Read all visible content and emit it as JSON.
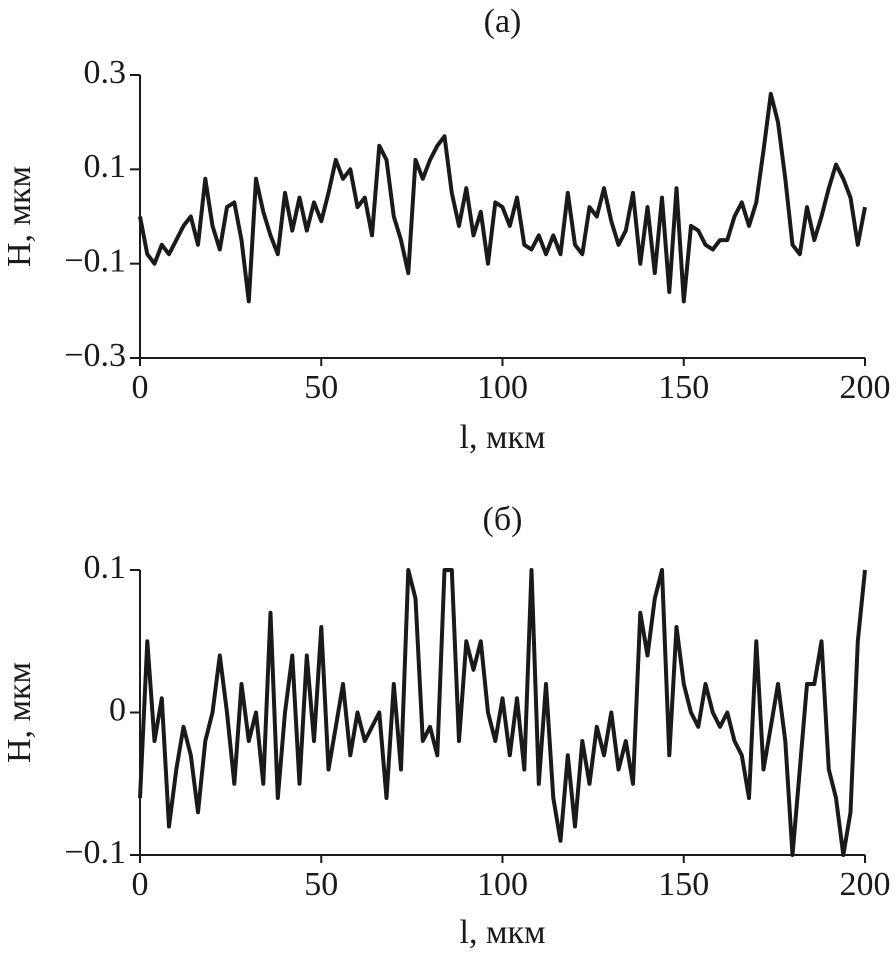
{
  "chart_data": [
    {
      "type": "line",
      "title": "(a)",
      "xlabel": "l, мкм",
      "ylabel": "H, мкм",
      "color": "#1a1a1a",
      "xlim": [
        0,
        200
      ],
      "xticks": [
        0,
        50,
        100,
        150,
        200
      ],
      "ylim": [
        -0.3,
        0.3
      ],
      "yticks": [
        {
          "value": -0.3,
          "label": "−0.3"
        },
        {
          "value": -0.1,
          "label": "−0.1"
        },
        0.1,
        0.3
      ],
      "x": [
        0,
        2,
        4,
        6,
        8,
        10,
        12,
        14,
        16,
        18,
        20,
        22,
        24,
        26,
        28,
        30,
        32,
        34,
        36,
        38,
        40,
        42,
        44,
        46,
        48,
        50,
        52,
        54,
        56,
        58,
        60,
        62,
        64,
        66,
        68,
        70,
        72,
        74,
        76,
        78,
        80,
        82,
        84,
        86,
        88,
        90,
        92,
        94,
        96,
        98,
        100,
        102,
        104,
        106,
        108,
        110,
        112,
        114,
        116,
        118,
        120,
        122,
        124,
        126,
        128,
        130,
        132,
        134,
        136,
        138,
        140,
        142,
        144,
        146,
        148,
        150,
        152,
        154,
        156,
        158,
        160,
        162,
        164,
        166,
        168,
        170,
        172,
        174,
        176,
        178,
        180,
        182,
        184,
        186,
        188,
        190,
        192,
        194,
        196,
        198,
        200
      ],
      "values": [
        0.0,
        -0.08,
        -0.1,
        -0.06,
        -0.08,
        -0.05,
        -0.02,
        0.0,
        -0.06,
        0.08,
        -0.02,
        -0.07,
        0.02,
        0.03,
        -0.05,
        -0.18,
        0.08,
        0.01,
        -0.04,
        -0.08,
        0.05,
        -0.03,
        0.04,
        -0.03,
        0.03,
        -0.01,
        0.05,
        0.12,
        0.08,
        0.1,
        0.02,
        0.04,
        -0.04,
        0.15,
        0.12,
        0.0,
        -0.05,
        -0.12,
        0.12,
        0.08,
        0.12,
        0.15,
        0.17,
        0.05,
        -0.02,
        0.06,
        -0.04,
        0.01,
        -0.1,
        0.03,
        0.02,
        -0.02,
        0.04,
        -0.06,
        -0.07,
        -0.04,
        -0.08,
        -0.04,
        -0.08,
        0.05,
        -0.06,
        -0.08,
        0.02,
        0.0,
        0.06,
        -0.01,
        -0.06,
        -0.03,
        0.05,
        -0.1,
        0.02,
        -0.12,
        0.04,
        -0.16,
        0.06,
        -0.18,
        -0.02,
        -0.03,
        -0.06,
        -0.07,
        -0.05,
        -0.05,
        0.0,
        0.03,
        -0.02,
        0.03,
        0.14,
        0.26,
        0.2,
        0.08,
        -0.06,
        -0.08,
        0.02,
        -0.05,
        0.0,
        0.06,
        0.11,
        0.08,
        0.04,
        -0.06,
        0.02
      ]
    },
    {
      "type": "line",
      "title": "(б)",
      "xlabel": "l, мкм",
      "ylabel": "H, мкм",
      "color": "#1a1a1a",
      "xlim": [
        0,
        200
      ],
      "xticks": [
        0,
        50,
        100,
        150,
        200
      ],
      "ylim": [
        -0.1,
        0.1
      ],
      "yticks": [
        {
          "value": -0.1,
          "label": "−0.1"
        },
        0,
        0.1
      ],
      "x": [
        0,
        2,
        4,
        6,
        8,
        10,
        12,
        14,
        16,
        18,
        20,
        22,
        24,
        26,
        28,
        30,
        32,
        34,
        36,
        38,
        40,
        42,
        44,
        46,
        48,
        50,
        52,
        54,
        56,
        58,
        60,
        62,
        64,
        66,
        68,
        70,
        72,
        74,
        76,
        78,
        80,
        82,
        84,
        86,
        88,
        90,
        92,
        94,
        96,
        98,
        100,
        102,
        104,
        106,
        108,
        110,
        112,
        114,
        116,
        118,
        120,
        122,
        124,
        126,
        128,
        130,
        132,
        134,
        136,
        138,
        140,
        142,
        144,
        146,
        148,
        150,
        152,
        154,
        156,
        158,
        160,
        162,
        164,
        166,
        168,
        170,
        172,
        174,
        176,
        178,
        180,
        182,
        184,
        186,
        188,
        190,
        192,
        194,
        196,
        198,
        200
      ],
      "values": [
        -0.06,
        0.05,
        -0.02,
        0.01,
        -0.08,
        -0.04,
        -0.01,
        -0.03,
        -0.07,
        -0.02,
        0.0,
        0.04,
        0.0,
        -0.05,
        0.02,
        -0.02,
        0.0,
        -0.05,
        0.07,
        -0.06,
        0.0,
        0.04,
        -0.05,
        0.04,
        -0.02,
        0.06,
        -0.04,
        -0.01,
        0.02,
        -0.03,
        0.0,
        -0.02,
        -0.01,
        0.0,
        -0.06,
        0.02,
        -0.04,
        0.1,
        0.08,
        -0.02,
        -0.01,
        -0.03,
        0.1,
        0.1,
        -0.02,
        0.05,
        0.03,
        0.05,
        0.0,
        -0.02,
        0.01,
        -0.03,
        0.01,
        -0.04,
        0.1,
        -0.05,
        0.02,
        -0.06,
        -0.09,
        -0.03,
        -0.08,
        -0.02,
        -0.05,
        -0.01,
        -0.03,
        0.0,
        -0.04,
        -0.02,
        -0.05,
        0.07,
        0.04,
        0.08,
        0.1,
        -0.03,
        0.06,
        0.02,
        0.0,
        -0.01,
        0.02,
        0.0,
        -0.01,
        0.0,
        -0.02,
        -0.03,
        -0.06,
        0.05,
        -0.04,
        -0.01,
        0.02,
        -0.02,
        -0.1,
        -0.04,
        0.02,
        0.02,
        0.05,
        -0.04,
        -0.06,
        -0.1,
        -0.07,
        0.05,
        0.1
      ]
    }
  ]
}
